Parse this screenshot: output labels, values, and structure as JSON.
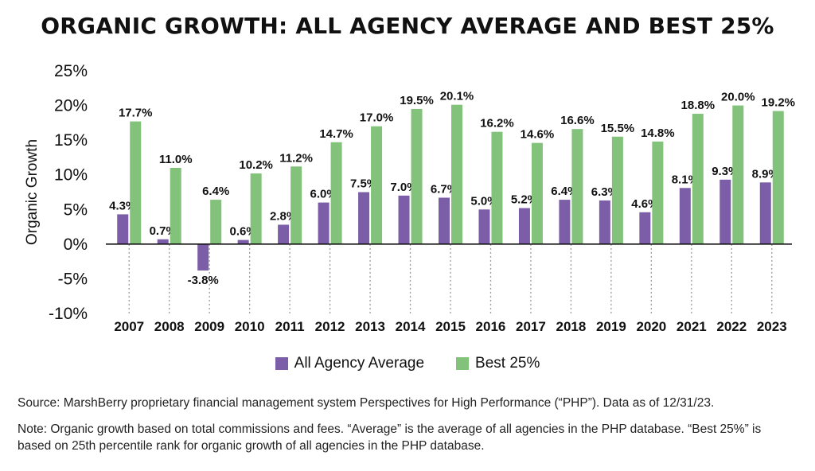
{
  "chart_data": {
    "type": "bar",
    "title": "ORGANIC GROWTH: ALL AGENCY AVERAGE AND BEST 25%",
    "ylabel": "Organic Growth",
    "xlabel": "",
    "ylim": [
      -10,
      25
    ],
    "yticks": [
      25,
      20,
      15,
      10,
      5,
      0,
      -5,
      -10
    ],
    "ytick_labels": [
      "25%",
      "20%",
      "15%",
      "10%",
      "5%",
      "0%",
      "-5%",
      "-10%"
    ],
    "categories": [
      "2007",
      "2008",
      "2009",
      "2010",
      "2011",
      "2012",
      "2013",
      "2014",
      "2015",
      "2016",
      "2017",
      "2018",
      "2019",
      "2020",
      "2021",
      "2022",
      "2023"
    ],
    "series": [
      {
        "name": "All Agency Average",
        "color": "#7b5ea7",
        "values": [
          4.3,
          0.7,
          -3.8,
          0.6,
          2.8,
          6.0,
          7.5,
          7.0,
          6.7,
          5.0,
          5.2,
          6.4,
          6.3,
          4.6,
          8.1,
          9.3,
          8.9
        ],
        "labels": [
          "4.3%",
          "0.7%",
          "-3.8%",
          "0.6%",
          "2.8%",
          "6.0%",
          "7.5%",
          "7.0%",
          "6.7%",
          "5.0%",
          "5.2%",
          "6.4%",
          "6.3%",
          "4.6%",
          "8.1%",
          "9.3%",
          "8.9%"
        ]
      },
      {
        "name": "Best 25%",
        "color": "#82c27a",
        "values": [
          17.7,
          11.0,
          6.4,
          10.2,
          11.2,
          14.7,
          17.0,
          19.5,
          20.1,
          16.2,
          14.6,
          16.6,
          15.5,
          14.8,
          18.8,
          20.0,
          19.2
        ],
        "labels": [
          "17.7%",
          "11.0%",
          "6.4%",
          "10.2%",
          "11.2%",
          "14.7%",
          "17.0%",
          "19.5%",
          "20.1%",
          "16.2%",
          "14.6%",
          "16.6%",
          "15.5%",
          "14.8%",
          "18.8%",
          "20.0%",
          "19.2%"
        ]
      }
    ],
    "legend_position": "bottom-center",
    "grid": false
  },
  "notes": {
    "source": "Source: MarshBerry proprietary financial management system Perspectives for High Performance (“PHP”). Data as of 12/31/23.",
    "explanation": "Note: Organic growth based on total commissions and fees. “Average” is the average of all agencies in the PHP database. “Best 25%” is based on 25th percentile rank for organic growth of all agencies in the PHP database."
  }
}
